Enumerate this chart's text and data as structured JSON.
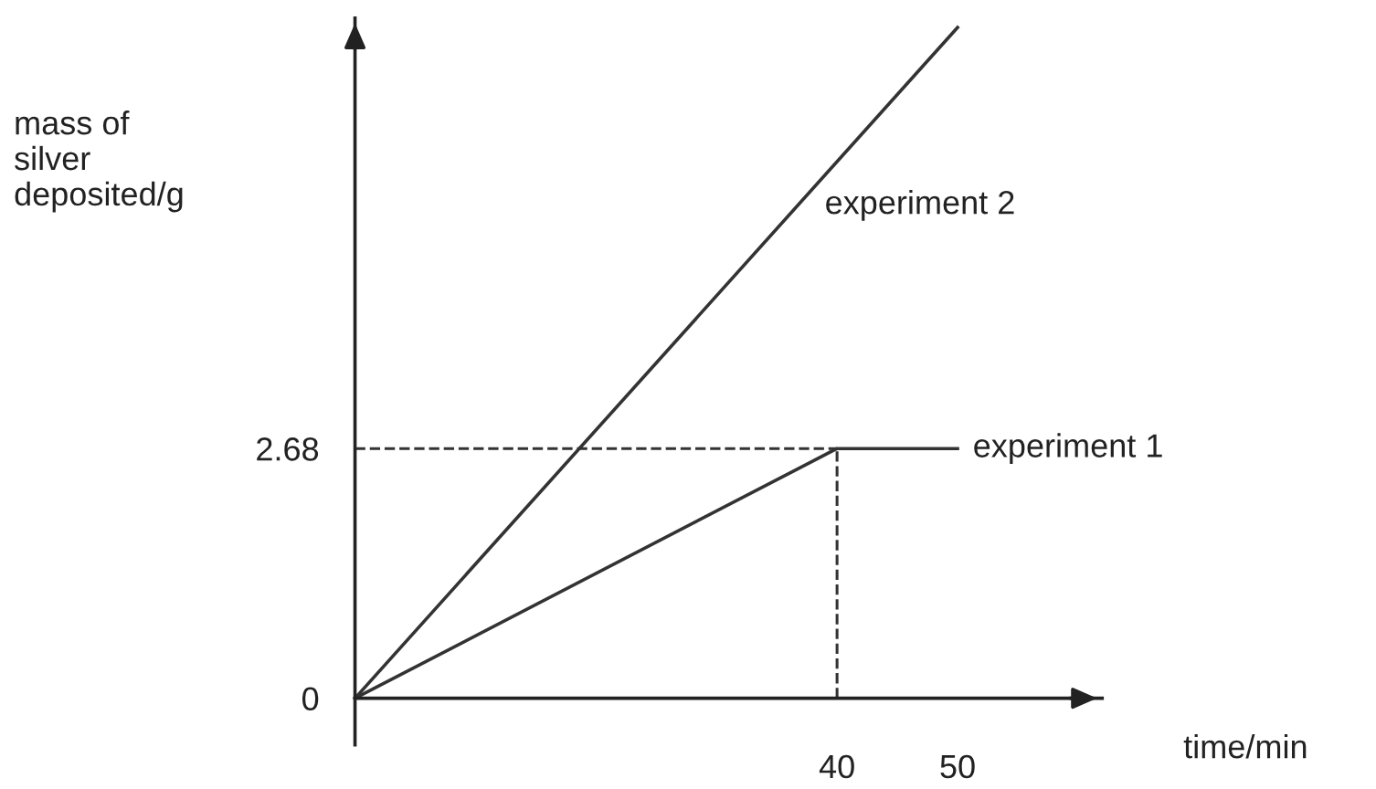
{
  "chart_data": {
    "type": "line",
    "xlabel": "time/min",
    "ylabel": "mass of\nsilver\ndeposited/g",
    "series": [
      {
        "name": "experiment 2",
        "color": "#333333",
        "x": [
          0,
          50
        ],
        "values": [
          0,
          7.2
        ]
      },
      {
        "name": "experiment 1",
        "color": "#333333",
        "x": [
          0,
          40,
          50
        ],
        "values": [
          0,
          2.68,
          2.68
        ]
      }
    ],
    "xlim": [
      0,
      62
    ],
    "ylim": [
      -0.5,
      7.3
    ],
    "xticks": [
      40,
      50
    ],
    "yticks": [
      {
        "value": 0,
        "label": "0"
      },
      2.68
    ],
    "ref_lines": [
      {
        "axis": "y",
        "value": 2.68,
        "color": "#333333",
        "line_style": "dashed"
      },
      {
        "axis": "x",
        "value": 40,
        "color": "#333333",
        "line_style": "dashed"
      }
    ],
    "grid": false,
    "marker": "none",
    "line_style": "solid"
  }
}
